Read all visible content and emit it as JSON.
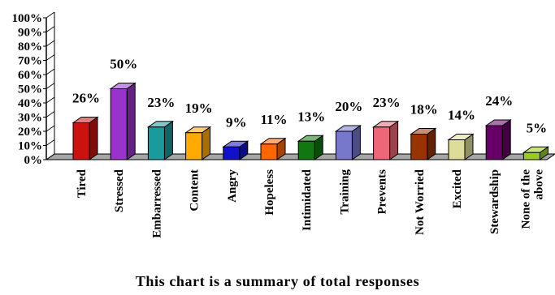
{
  "chart_data": {
    "type": "bar",
    "categories": [
      "Tired",
      "Stressed",
      "Embarressed",
      "Content",
      "Angry",
      "Hopeless",
      "Intimidated",
      "Training",
      "Prevents",
      "Not Worried",
      "Excited",
      "Stewardship",
      "None of the above"
    ],
    "values": [
      26,
      50,
      23,
      19,
      9,
      11,
      13,
      20,
      23,
      18,
      14,
      24,
      5
    ],
    "data_labels": [
      "26%",
      "50%",
      "23%",
      "19%",
      "9%",
      "11%",
      "13%",
      "20%",
      "23%",
      "18%",
      "14%",
      "24%",
      "5%"
    ],
    "y_ticks": [
      "0%",
      "10%",
      "20%",
      "30%",
      "40%",
      "50%",
      "60%",
      "70%",
      "80%",
      "90%",
      "100%"
    ],
    "ylim": [
      0,
      100
    ],
    "grid": false,
    "legend": "none",
    "bar_colors": [
      "#cc1111",
      "#9933cc",
      "#1a9a9a",
      "#ffaa00",
      "#1111cc",
      "#ff6600",
      "#117711",
      "#7777cc",
      "#ee6677",
      "#993300",
      "#dddd99",
      "#660066",
      "#99cc22"
    ],
    "floor_color": "#a6a6a6",
    "caption": "This chart is a summary of total responses"
  }
}
